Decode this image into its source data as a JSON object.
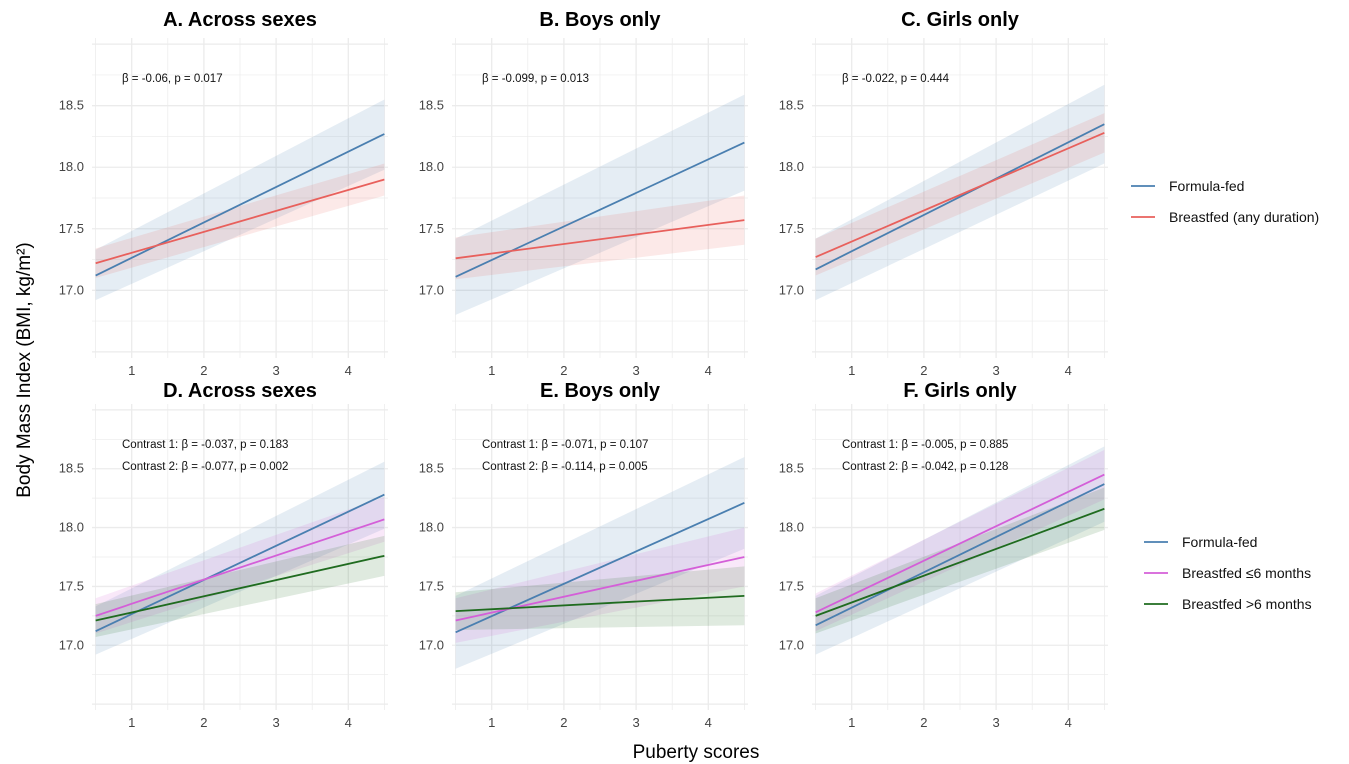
{
  "figure": {
    "xlabel": "Puberty scores",
    "ylabel": "Body Mass Index (BMI, kg/m²)"
  },
  "colors": {
    "formula": "#4a7fb0",
    "breastfed": "#e8605c",
    "bf_le6": "#d45fd8",
    "bf_gt6": "#1f6b1f"
  },
  "legend_top": {
    "items": [
      {
        "label": "Formula-fed",
        "color": "#4a7fb0"
      },
      {
        "label": "Breastfed (any duration)",
        "color": "#e8605c"
      }
    ]
  },
  "legend_bottom": {
    "items": [
      {
        "label": "Formula-fed",
        "color": "#4a7fb0"
      },
      {
        "label": "Breastfed ≤6 months",
        "color": "#d45fd8"
      },
      {
        "label": "Breastfed >6 months",
        "color": "#1f6b1f"
      }
    ]
  },
  "chart_data": [
    {
      "type": "line",
      "title": "A. Across sexes",
      "xlim": [
        0.5,
        4.5
      ],
      "ylim": [
        16.5,
        19.0
      ],
      "xticks": [
        1,
        2,
        3,
        4
      ],
      "yticks": [
        17.0,
        17.5,
        18.0,
        18.5
      ],
      "annotations": [
        "β = -0.06, p = 0.017"
      ],
      "series": [
        {
          "name": "Formula-fed",
          "color": "#4a7fb0",
          "x": [
            0.5,
            4.5
          ],
          "y": [
            17.12,
            18.27
          ],
          "ci_low": [
            16.92,
            17.98
          ],
          "ci_high": [
            17.33,
            18.55
          ]
        },
        {
          "name": "Breastfed (any duration)",
          "color": "#e8605c",
          "x": [
            0.5,
            4.5
          ],
          "y": [
            17.22,
            17.9
          ],
          "ci_low": [
            17.1,
            17.77
          ],
          "ci_high": [
            17.34,
            18.03
          ]
        }
      ]
    },
    {
      "type": "line",
      "title": "B. Boys only",
      "xlim": [
        0.5,
        4.5
      ],
      "ylim": [
        16.5,
        19.0
      ],
      "xticks": [
        1,
        2,
        3,
        4
      ],
      "yticks": [
        17.0,
        17.5,
        18.0,
        18.5
      ],
      "annotations": [
        "β = -0.099, p = 0.013"
      ],
      "series": [
        {
          "name": "Formula-fed",
          "color": "#4a7fb0",
          "x": [
            0.5,
            4.5
          ],
          "y": [
            17.11,
            18.2
          ],
          "ci_low": [
            16.8,
            17.81
          ],
          "ci_high": [
            17.42,
            18.59
          ]
        },
        {
          "name": "Breastfed (any duration)",
          "color": "#e8605c",
          "x": [
            0.5,
            4.5
          ],
          "y": [
            17.26,
            17.57
          ],
          "ci_low": [
            17.09,
            17.37
          ],
          "ci_high": [
            17.43,
            17.77
          ]
        }
      ]
    },
    {
      "type": "line",
      "title": "C. Girls only",
      "xlim": [
        0.5,
        4.5
      ],
      "ylim": [
        16.5,
        19.0
      ],
      "xticks": [
        1,
        2,
        3,
        4
      ],
      "yticks": [
        17.0,
        17.5,
        18.0,
        18.5
      ],
      "annotations": [
        "β = -0.022, p = 0.444"
      ],
      "series": [
        {
          "name": "Formula-fed",
          "color": "#4a7fb0",
          "x": [
            0.5,
            4.5
          ],
          "y": [
            17.17,
            18.35
          ],
          "ci_low": [
            16.92,
            18.03
          ],
          "ci_high": [
            17.42,
            18.67
          ]
        },
        {
          "name": "Breastfed (any duration)",
          "color": "#e8605c",
          "x": [
            0.5,
            4.5
          ],
          "y": [
            17.27,
            18.28
          ],
          "ci_low": [
            17.12,
            18.12
          ],
          "ci_high": [
            17.42,
            18.44
          ]
        }
      ]
    },
    {
      "type": "line",
      "title": "D. Across sexes",
      "xlim": [
        0.5,
        4.5
      ],
      "ylim": [
        16.5,
        19.0
      ],
      "xticks": [
        1,
        2,
        3,
        4
      ],
      "yticks": [
        17.0,
        17.5,
        18.0,
        18.5
      ],
      "annotations": [
        "Contrast 1: β = -0.037, p = 0.183",
        "Contrast 2: β = -0.077, p = 0.002"
      ],
      "series": [
        {
          "name": "Formula-fed",
          "color": "#4a7fb0",
          "x": [
            0.5,
            4.5
          ],
          "y": [
            17.12,
            18.28
          ],
          "ci_low": [
            16.92,
            17.99
          ],
          "ci_high": [
            17.33,
            18.56
          ]
        },
        {
          "name": "Breastfed ≤6 months",
          "color": "#d45fd8",
          "x": [
            0.5,
            4.5
          ],
          "y": [
            17.25,
            18.07
          ],
          "ci_low": [
            17.1,
            17.88
          ],
          "ci_high": [
            17.4,
            18.26
          ]
        },
        {
          "name": "Breastfed >6 months",
          "color": "#1f6b1f",
          "x": [
            0.5,
            4.5
          ],
          "y": [
            17.21,
            17.76
          ],
          "ci_low": [
            17.07,
            17.59
          ],
          "ci_high": [
            17.35,
            17.93
          ]
        }
      ]
    },
    {
      "type": "line",
      "title": "E. Boys only",
      "xlim": [
        0.5,
        4.5
      ],
      "ylim": [
        16.5,
        19.0
      ],
      "xticks": [
        1,
        2,
        3,
        4
      ],
      "yticks": [
        17.0,
        17.5,
        18.0,
        18.5
      ],
      "annotations": [
        "Contrast 1: β = -0.071, p = 0.107",
        "Contrast 2: β = -0.114, p = 0.005"
      ],
      "series": [
        {
          "name": "Formula-fed",
          "color": "#4a7fb0",
          "x": [
            0.5,
            4.5
          ],
          "y": [
            17.11,
            18.21
          ],
          "ci_low": [
            16.8,
            17.82
          ],
          "ci_high": [
            17.42,
            18.6
          ]
        },
        {
          "name": "Breastfed ≤6 months",
          "color": "#d45fd8",
          "x": [
            0.5,
            4.5
          ],
          "y": [
            17.21,
            17.75
          ],
          "ci_low": [
            17.02,
            17.5
          ],
          "ci_high": [
            17.4,
            18.0
          ]
        },
        {
          "name": "Breastfed >6 months",
          "color": "#1f6b1f",
          "x": [
            0.5,
            4.5
          ],
          "y": [
            17.29,
            17.42
          ],
          "ci_low": [
            17.13,
            17.17
          ],
          "ci_high": [
            17.45,
            17.67
          ]
        }
      ]
    },
    {
      "type": "line",
      "title": "F. Girls only",
      "xlim": [
        0.5,
        4.5
      ],
      "ylim": [
        16.5,
        19.0
      ],
      "xticks": [
        1,
        2,
        3,
        4
      ],
      "yticks": [
        17.0,
        17.5,
        18.0,
        18.5
      ],
      "annotations": [
        "Contrast 1: β = -0.005, p = 0.885",
        "Contrast 2: β = -0.042, p = 0.128"
      ],
      "series": [
        {
          "name": "Formula-fed",
          "color": "#4a7fb0",
          "x": [
            0.5,
            4.5
          ],
          "y": [
            17.17,
            18.37
          ],
          "ci_low": [
            16.92,
            18.05
          ],
          "ci_high": [
            17.42,
            18.69
          ]
        },
        {
          "name": "Breastfed ≤6 months",
          "color": "#d45fd8",
          "x": [
            0.5,
            4.5
          ],
          "y": [
            17.28,
            18.45
          ],
          "ci_low": [
            17.12,
            18.24
          ],
          "ci_high": [
            17.44,
            18.66
          ]
        },
        {
          "name": "Breastfed >6 months",
          "color": "#1f6b1f",
          "x": [
            0.5,
            4.5
          ],
          "y": [
            17.25,
            18.16
          ],
          "ci_low": [
            17.1,
            17.98
          ],
          "ci_high": [
            17.4,
            18.34
          ]
        }
      ]
    }
  ]
}
